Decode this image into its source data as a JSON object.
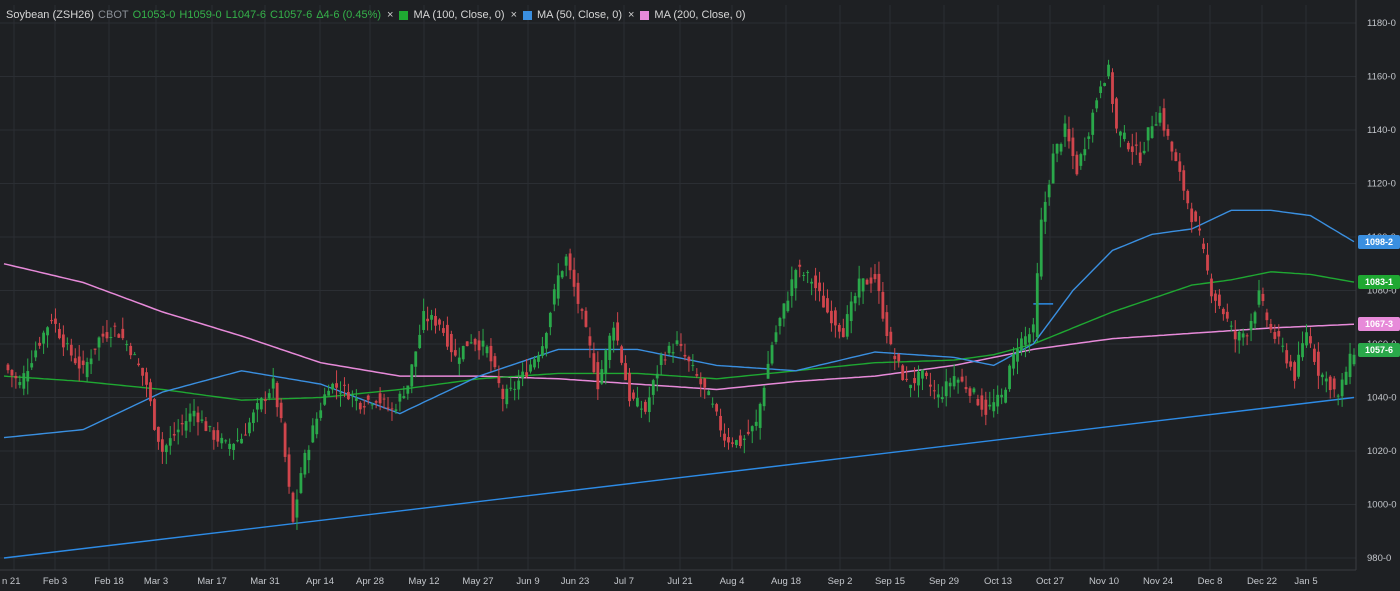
{
  "legend": {
    "symbol": "Soybean (ZSH26)",
    "exchange": "CBOT",
    "open": "O1053-0",
    "high": "H1059-0",
    "low": "L1047-6",
    "close": "C1057-6",
    "change": "Δ4-6 (0.45%)",
    "close_x_icon": "×",
    "ma100_label": "MA (100, Close, 0)",
    "ma50_label": "MA (50, Close, 0)",
    "ma200_label": "MA (200, Close, 0)"
  },
  "colors": {
    "background": "#1e2023",
    "up": "#2aa84a",
    "down": "#d0454c",
    "ma100": "#1fa832",
    "ma50": "#3a8fe0",
    "ma200": "#e78ad9",
    "trendline": "#2d8be6",
    "grid": "#2b2e33"
  },
  "chart_data": {
    "type": "candlestick",
    "y_axis": {
      "min": 975,
      "max": 1185,
      "ticks": [
        "980-0",
        "1000-0",
        "1020-0",
        "1040-0",
        "1060-0",
        "1080-0",
        "1100-0",
        "1120-0",
        "1140-0",
        "1160-0",
        "1180-0"
      ],
      "tick_values": [
        980,
        1000,
        1020,
        1040,
        1060,
        1080,
        1100,
        1120,
        1140,
        1160,
        1180
      ]
    },
    "x_axis": {
      "ticks": [
        "n 21",
        "Feb 3",
        "Feb 18",
        "Mar 3",
        "Mar 17",
        "Mar 31",
        "Apr 14",
        "Apr 28",
        "May 12",
        "May 27",
        "Jun 9",
        "Jun 23",
        "Jul 7",
        "Jul 21",
        "Aug 4",
        "Aug 18",
        "Sep 2",
        "Sep 15",
        "Sep 29",
        "Oct 13",
        "Oct 27",
        "Nov 10",
        "Nov 24",
        "Dec 8",
        "Dec 22",
        "Jan 5"
      ]
    },
    "price_badges": [
      {
        "label": "1098-2",
        "value": 1098.25,
        "series": "MA (50, Close, 0)"
      },
      {
        "label": "1083-1",
        "value": 1083.125,
        "series": "MA (100, Close, 0)"
      },
      {
        "label": "1067-3",
        "value": 1067.375,
        "series": "MA (200, Close, 0)"
      },
      {
        "label": "1057-6",
        "value": 1057.75,
        "series": "Soybean (ZSH26)"
      }
    ],
    "close_path": [
      [
        0,
        1052
      ],
      [
        4,
        1045
      ],
      [
        8,
        1058
      ],
      [
        12,
        1070
      ],
      [
        16,
        1058
      ],
      [
        20,
        1050
      ],
      [
        24,
        1062
      ],
      [
        28,
        1066
      ],
      [
        32,
        1058
      ],
      [
        36,
        1045
      ],
      [
        38,
        1030
      ],
      [
        40,
        1020
      ],
      [
        44,
        1028
      ],
      [
        48,
        1035
      ],
      [
        52,
        1027
      ],
      [
        56,
        1022
      ],
      [
        60,
        1025
      ],
      [
        64,
        1036
      ],
      [
        68,
        1045
      ],
      [
        70,
        1030
      ],
      [
        72,
        1005
      ],
      [
        73,
        993
      ],
      [
        75,
        1012
      ],
      [
        78,
        1028
      ],
      [
        82,
        1045
      ],
      [
        86,
        1043
      ],
      [
        90,
        1038
      ],
      [
        94,
        1040
      ],
      [
        98,
        1035
      ],
      [
        102,
        1045
      ],
      [
        106,
        1070
      ],
      [
        110,
        1068
      ],
      [
        114,
        1055
      ],
      [
        118,
        1062
      ],
      [
        122,
        1058
      ],
      [
        126,
        1040
      ],
      [
        128,
        1042
      ],
      [
        132,
        1050
      ],
      [
        136,
        1060
      ],
      [
        140,
        1085
      ],
      [
        142,
        1092
      ],
      [
        146,
        1070
      ],
      [
        148,
        1058
      ],
      [
        150,
        1045
      ],
      [
        154,
        1068
      ],
      [
        158,
        1040
      ],
      [
        162,
        1035
      ],
      [
        166,
        1055
      ],
      [
        170,
        1060
      ],
      [
        174,
        1050
      ],
      [
        178,
        1040
      ],
      [
        182,
        1025
      ],
      [
        186,
        1023
      ],
      [
        190,
        1030
      ],
      [
        194,
        1060
      ],
      [
        198,
        1078
      ],
      [
        200,
        1088
      ],
      [
        204,
        1084
      ],
      [
        208,
        1072
      ],
      [
        212,
        1065
      ],
      [
        216,
        1082
      ],
      [
        220,
        1085
      ],
      [
        224,
        1058
      ],
      [
        228,
        1045
      ],
      [
        232,
        1048
      ],
      [
        236,
        1040
      ],
      [
        240,
        1048
      ],
      [
        244,
        1043
      ],
      [
        248,
        1035
      ],
      [
        252,
        1040
      ],
      [
        256,
        1060
      ],
      [
        260,
        1065
      ],
      [
        262,
        1105
      ],
      [
        265,
        1130
      ],
      [
        268,
        1140
      ],
      [
        271,
        1125
      ],
      [
        274,
        1140
      ],
      [
        277,
        1158
      ],
      [
        279,
        1162
      ],
      [
        281,
        1140
      ],
      [
        284,
        1135
      ],
      [
        287,
        1130
      ],
      [
        290,
        1143
      ],
      [
        292,
        1146
      ],
      [
        295,
        1132
      ],
      [
        298,
        1118
      ],
      [
        300,
        1108
      ],
      [
        302,
        1100
      ],
      [
        305,
        1080
      ],
      [
        308,
        1072
      ],
      [
        311,
        1062
      ],
      [
        314,
        1065
      ],
      [
        317,
        1078
      ],
      [
        320,
        1065
      ],
      [
        323,
        1058
      ],
      [
        326,
        1048
      ],
      [
        329,
        1065
      ],
      [
        332,
        1050
      ],
      [
        335,
        1045
      ],
      [
        337,
        1040
      ],
      [
        339,
        1050
      ],
      [
        341,
        1057.75
      ]
    ],
    "ma50": [
      [
        0,
        1025
      ],
      [
        20,
        1028
      ],
      [
        40,
        1042
      ],
      [
        60,
        1050
      ],
      [
        80,
        1045
      ],
      [
        100,
        1034
      ],
      [
        120,
        1048
      ],
      [
        140,
        1058
      ],
      [
        160,
        1058
      ],
      [
        180,
        1052
      ],
      [
        200,
        1050
      ],
      [
        220,
        1057
      ],
      [
        240,
        1055
      ],
      [
        250,
        1052
      ],
      [
        260,
        1060
      ],
      [
        270,
        1080
      ],
      [
        280,
        1095
      ],
      [
        290,
        1101
      ],
      [
        300,
        1103
      ],
      [
        310,
        1110
      ],
      [
        320,
        1110
      ],
      [
        330,
        1108
      ],
      [
        341,
        1098.25
      ]
    ],
    "ma100": [
      [
        0,
        1048
      ],
      [
        20,
        1046
      ],
      [
        40,
        1043
      ],
      [
        60,
        1039
      ],
      [
        80,
        1040
      ],
      [
        100,
        1043
      ],
      [
        120,
        1047
      ],
      [
        140,
        1049
      ],
      [
        160,
        1049
      ],
      [
        180,
        1047
      ],
      [
        200,
        1050
      ],
      [
        220,
        1053
      ],
      [
        240,
        1054
      ],
      [
        250,
        1056
      ],
      [
        260,
        1060
      ],
      [
        270,
        1066
      ],
      [
        280,
        1072
      ],
      [
        290,
        1077
      ],
      [
        300,
        1082
      ],
      [
        310,
        1084
      ],
      [
        320,
        1087
      ],
      [
        330,
        1086
      ],
      [
        341,
        1083.125
      ]
    ],
    "ma200": [
      [
        0,
        1090
      ],
      [
        20,
        1083
      ],
      [
        40,
        1072
      ],
      [
        60,
        1063
      ],
      [
        80,
        1053
      ],
      [
        100,
        1048
      ],
      [
        120,
        1048
      ],
      [
        140,
        1047
      ],
      [
        160,
        1045
      ],
      [
        180,
        1043
      ],
      [
        200,
        1046
      ],
      [
        220,
        1048
      ],
      [
        240,
        1052
      ],
      [
        260,
        1058
      ],
      [
        280,
        1062
      ],
      [
        300,
        1064
      ],
      [
        320,
        1066
      ],
      [
        341,
        1067.375
      ]
    ],
    "trendline": {
      "from": [
        0,
        980
      ],
      "to": [
        341,
        1040
      ]
    },
    "resistance_marker": {
      "from": [
        260,
        1075
      ],
      "to": [
        265,
        1075
      ]
    }
  }
}
